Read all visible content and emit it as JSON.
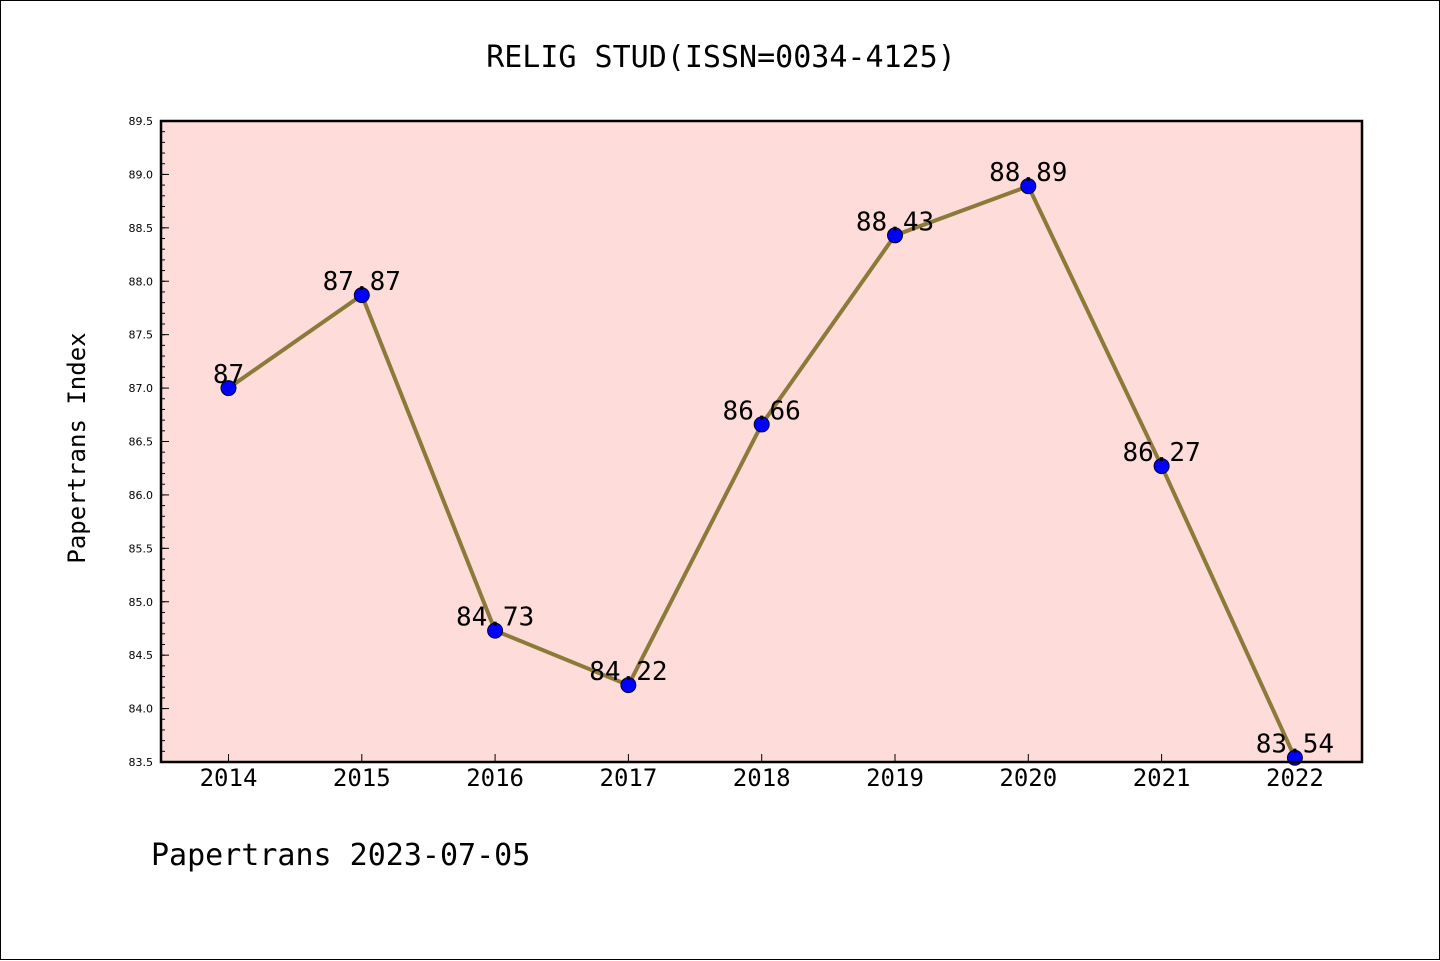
{
  "chart_data": {
    "type": "line",
    "title": "RELIG STUD(ISSN=0034-4125)",
    "xlabel": "",
    "ylabel": "Papertrans Index",
    "categories": [
      "2014",
      "2015",
      "2016",
      "2017",
      "2018",
      "2019",
      "2020",
      "2021",
      "2022"
    ],
    "series": [
      {
        "values": [
          87,
          87.87,
          84.73,
          84.22,
          86.66,
          88.43,
          88.89,
          86.27,
          83.54
        ],
        "data_labels": [
          "87",
          "87.87",
          "84.73",
          "84.22",
          "86.66",
          "88.43",
          "88.89",
          "86.27",
          "83.54"
        ],
        "line_color": "#8b7a3a",
        "marker_color": "#0000ff"
      }
    ],
    "ylim": [
      83.5,
      89.5
    ],
    "yticks": [
      "83.5",
      "84.0",
      "84.5",
      "85.0",
      "85.5",
      "86.0",
      "86.5",
      "87.0",
      "87.5",
      "88.0",
      "88.5",
      "89.0",
      "89.5"
    ],
    "plot_background": "#fddcd9",
    "grid": false,
    "legend": "none"
  },
  "footer": "Papertrans 2023-07-05"
}
